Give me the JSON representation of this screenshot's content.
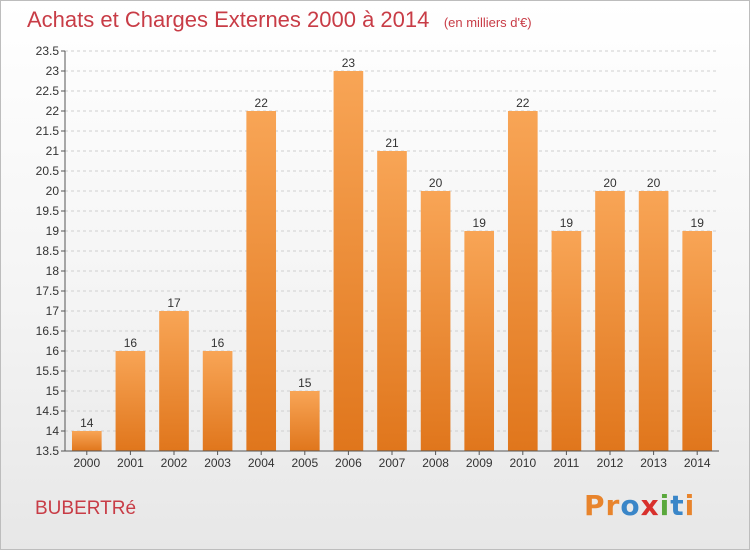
{
  "title": "Achats et Charges Externes 2000 à 2014",
  "subtitle": "(en milliers d'€)",
  "commune": "BUBERTRé",
  "logo": {
    "text": "Proxiti",
    "letters": [
      {
        "ch": "P",
        "color": "#e8842c"
      },
      {
        "ch": "r",
        "color": "#e8842c"
      },
      {
        "ch": "o",
        "color": "#3a86c8"
      },
      {
        "ch": "x",
        "color": "#d8302c"
      },
      {
        "ch": "i",
        "color": "#5aa83c"
      },
      {
        "ch": "t",
        "color": "#3a86c8"
      },
      {
        "ch": "i",
        "color": "#e8842c"
      }
    ]
  },
  "chart_data": {
    "type": "bar",
    "title": "Achats et Charges Externes 2000 à 2014",
    "subtitle": "(en milliers d'€)",
    "xlabel": "",
    "ylabel": "",
    "categories": [
      "2000",
      "2001",
      "2002",
      "2003",
      "2004",
      "2005",
      "2006",
      "2007",
      "2008",
      "2009",
      "2010",
      "2011",
      "2012",
      "2013",
      "2014"
    ],
    "values": [
      14,
      16,
      17,
      16,
      22,
      15,
      23,
      21,
      20,
      19,
      22,
      19,
      20,
      20,
      19
    ],
    "data_labels": [
      "14",
      "16",
      "17",
      "16",
      "22",
      "15",
      "23",
      "21",
      "20",
      "19",
      "22",
      "19",
      "20",
      "20",
      "19"
    ],
    "ylim": [
      13.5,
      23.5
    ],
    "yticks": [
      "13.5",
      "14",
      "14.5",
      "15",
      "15.5",
      "16",
      "16.5",
      "17",
      "17.5",
      "18",
      "18.5",
      "19",
      "19.5",
      "20",
      "20.5",
      "21",
      "21.5",
      "22",
      "22.5",
      "23",
      "23.5"
    ],
    "grid": "horizontal dashed",
    "legend": "none",
    "bar_color": "#f08a2c"
  }
}
